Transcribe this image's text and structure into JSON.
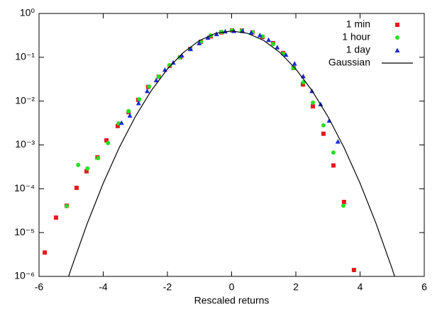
{
  "chart_data": {
    "type": "scatter",
    "xlabel": "Rescaled returns",
    "log_y": true,
    "legend": "top-right",
    "xlim": [
      -6,
      6
    ],
    "xticks": [
      -6,
      -4,
      -2,
      0,
      2,
      4,
      6
    ],
    "ylim": [
      1e-06,
      1
    ],
    "yticks": [
      {
        "value": 1e-06,
        "label": "10⁻⁶"
      },
      {
        "value": 1e-05,
        "label": "10⁻⁵"
      },
      {
        "value": 0.0001,
        "label": "10⁻⁴"
      },
      {
        "value": 0.001,
        "label": "10⁻³"
      },
      {
        "value": 0.01,
        "label": "10⁻²"
      },
      {
        "value": 0.1,
        "label": "10⁻¹"
      },
      {
        "value": 1,
        "label": "10⁰"
      }
    ],
    "series": [
      {
        "name": "1 min",
        "color": "#e41a1c",
        "marker": "square",
        "x": [
          -5.82,
          -5.47,
          -5.14,
          -4.83,
          -4.52,
          -4.18,
          -3.9,
          -3.55,
          -3.21,
          -2.91,
          -2.6,
          -2.27,
          -1.93,
          -1.6,
          -1.29,
          -0.96,
          -0.65,
          -0.32,
          0.01,
          0.32,
          0.65,
          0.96,
          1.29,
          1.6,
          1.93,
          2.22,
          2.53,
          2.86,
          3.17,
          3.5,
          3.81
        ],
        "values": [
          3.5e-06,
          2.2e-05,
          4.1e-05,
          0.000105,
          0.00025,
          0.00052,
          0.00127,
          0.0027,
          0.0056,
          0.0107,
          0.021,
          0.036,
          0.064,
          0.1,
          0.155,
          0.225,
          0.3,
          0.37,
          0.41,
          0.41,
          0.37,
          0.29,
          0.21,
          0.125,
          0.057,
          0.024,
          0.0076,
          0.0018,
          0.00034,
          5e-05,
          1.4e-06
        ]
      },
      {
        "name": "1 hour",
        "color": "#22e022",
        "marker": "circle",
        "x": [
          -5.14,
          -4.78,
          -4.49,
          -4.16,
          -3.85,
          -3.52,
          -3.21,
          -2.88,
          -2.57,
          -2.27,
          -1.93,
          -1.62,
          -1.29,
          -0.96,
          -0.65,
          -0.32,
          0.01,
          0.32,
          0.65,
          0.96,
          1.29,
          1.6,
          1.93,
          2.24,
          2.53,
          2.86,
          3.17,
          3.48
        ],
        "values": [
          4e-05,
          0.00035,
          0.00029,
          0.0005,
          0.0011,
          0.0031,
          0.0059,
          0.011,
          0.0215,
          0.036,
          0.066,
          0.1,
          0.155,
          0.225,
          0.315,
          0.38,
          0.41,
          0.41,
          0.37,
          0.3,
          0.2,
          0.12,
          0.057,
          0.027,
          0.0092,
          0.0028,
          0.00067,
          4.1e-05
        ]
      },
      {
        "name": "1 day",
        "color": "#1a2bd0",
        "marker": "triangle",
        "x": [
          -3.43,
          -3.17,
          -2.9,
          -2.63,
          -2.35,
          -2.08,
          -1.82,
          -1.55,
          -1.28,
          -1.01,
          -0.74,
          -0.47,
          -0.2,
          0.07,
          0.34,
          0.61,
          0.88,
          1.15,
          1.42,
          1.69,
          1.96,
          2.23,
          2.5,
          2.77,
          3.04,
          3.31
        ],
        "values": [
          0.0032,
          0.0047,
          0.009,
          0.017,
          0.03,
          0.052,
          0.076,
          0.11,
          0.155,
          0.21,
          0.28,
          0.34,
          0.39,
          0.4,
          0.4,
          0.37,
          0.32,
          0.25,
          0.17,
          0.115,
          0.072,
          0.037,
          0.017,
          0.0085,
          0.0036,
          0.0012
        ]
      },
      {
        "name": "Gaussian",
        "color": "#000000",
        "marker": "line",
        "x": [
          -5.1,
          -5,
          -4.5,
          -4,
          -3.5,
          -3,
          -2.5,
          -2,
          -1.5,
          -1,
          -0.5,
          0,
          0.5,
          1,
          1.5,
          2,
          2.5,
          3,
          3.5,
          4,
          4.5,
          5,
          5.1
        ],
        "values": [
          8.95e-07,
          1.487e-06,
          1.598e-05,
          0.0001338,
          0.0008727,
          0.004432,
          0.01753,
          0.05399,
          0.1295,
          0.242,
          0.3521,
          0.3989,
          0.3521,
          0.242,
          0.1295,
          0.05399,
          0.01753,
          0.004432,
          0.0008727,
          0.0001338,
          1.598e-05,
          1.487e-06,
          8.95e-07
        ]
      }
    ]
  }
}
